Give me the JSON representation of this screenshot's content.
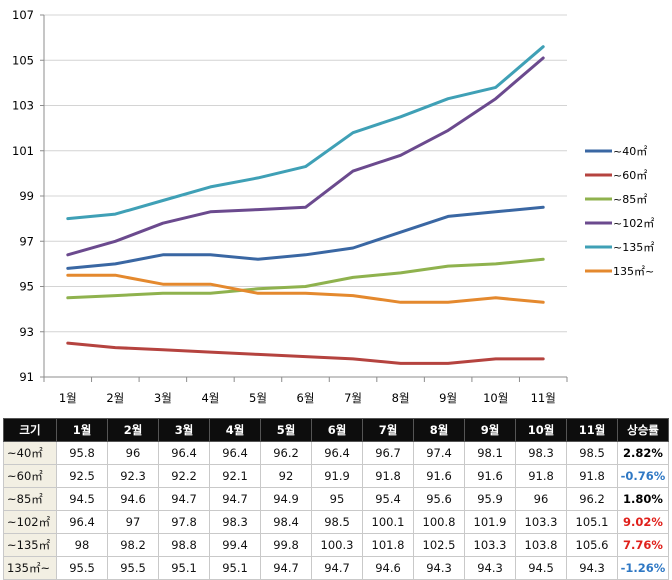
{
  "chart_data": {
    "type": "line",
    "categories": [
      "1월",
      "2월",
      "3월",
      "4월",
      "5월",
      "6월",
      "7월",
      "8월",
      "9월",
      "10월",
      "11월"
    ],
    "ylim": [
      91,
      107
    ],
    "yticks": [
      91,
      93,
      95,
      97,
      99,
      101,
      103,
      105,
      107
    ],
    "grid": "horizontal",
    "legend_position": "right",
    "series": [
      {
        "name": "~40㎡",
        "color": "#3a67a3",
        "values": [
          95.8,
          96,
          96.4,
          96.4,
          96.2,
          96.4,
          96.7,
          97.4,
          98.1,
          98.3,
          98.5
        ]
      },
      {
        "name": "~60㎡",
        "color": "#b5433f",
        "values": [
          92.5,
          92.3,
          92.2,
          92.1,
          92,
          91.9,
          91.8,
          91.6,
          91.6,
          91.8,
          91.8
        ]
      },
      {
        "name": "~85㎡",
        "color": "#8fb24e",
        "values": [
          94.5,
          94.6,
          94.7,
          94.7,
          94.9,
          95,
          95.4,
          95.6,
          95.9,
          96,
          96.2
        ]
      },
      {
        "name": "~102㎡",
        "color": "#6b4a8e",
        "values": [
          96.4,
          97,
          97.8,
          98.3,
          98.4,
          98.5,
          100.1,
          100.8,
          101.9,
          103.3,
          105.1
        ]
      },
      {
        "name": "~135㎡",
        "color": "#3fa0b6",
        "values": [
          98,
          98.2,
          98.8,
          99.4,
          99.8,
          100.3,
          101.8,
          102.5,
          103.3,
          103.8,
          105.6
        ]
      },
      {
        "name": "135㎡~",
        "color": "#e4892e",
        "values": [
          95.5,
          95.5,
          95.1,
          95.1,
          94.7,
          94.7,
          94.6,
          94.3,
          94.3,
          94.5,
          94.3
        ]
      }
    ]
  },
  "table": {
    "headers": [
      "크기",
      "1월",
      "2월",
      "3월",
      "4월",
      "5월",
      "6월",
      "7월",
      "8월",
      "9월",
      "10월",
      "11월",
      "상승률"
    ],
    "rows": [
      {
        "label": "~40㎡",
        "values": [
          "95.8",
          "96",
          "96.4",
          "96.4",
          "96.2",
          "96.4",
          "96.7",
          "97.4",
          "98.1",
          "98.3",
          "98.5"
        ],
        "rate": "2.82%",
        "rate_color": "#000000"
      },
      {
        "label": "~60㎡",
        "values": [
          "92.5",
          "92.3",
          "92.2",
          "92.1",
          "92",
          "91.9",
          "91.8",
          "91.6",
          "91.6",
          "91.8",
          "91.8"
        ],
        "rate": "-0.76%",
        "rate_color": "#2f78c4"
      },
      {
        "label": "~85㎡",
        "values": [
          "94.5",
          "94.6",
          "94.7",
          "94.7",
          "94.9",
          "95",
          "95.4",
          "95.6",
          "95.9",
          "96",
          "96.2"
        ],
        "rate": "1.80%",
        "rate_color": "#000000"
      },
      {
        "label": "~102㎡",
        "values": [
          "96.4",
          "97",
          "97.8",
          "98.3",
          "98.4",
          "98.5",
          "100.1",
          "100.8",
          "101.9",
          "103.3",
          "105.1"
        ],
        "rate": "9.02%",
        "rate_color": "#e0201b"
      },
      {
        "label": "~135㎡",
        "values": [
          "98",
          "98.2",
          "98.8",
          "99.4",
          "99.8",
          "100.3",
          "101.8",
          "102.5",
          "103.3",
          "103.8",
          "105.6"
        ],
        "rate": "7.76%",
        "rate_color": "#e0201b"
      },
      {
        "label": "135㎡~",
        "values": [
          "95.5",
          "95.5",
          "95.1",
          "95.1",
          "94.7",
          "94.7",
          "94.6",
          "94.3",
          "94.3",
          "94.5",
          "94.3"
        ],
        "rate": "-1.26%",
        "rate_color": "#2f78c4"
      }
    ]
  }
}
